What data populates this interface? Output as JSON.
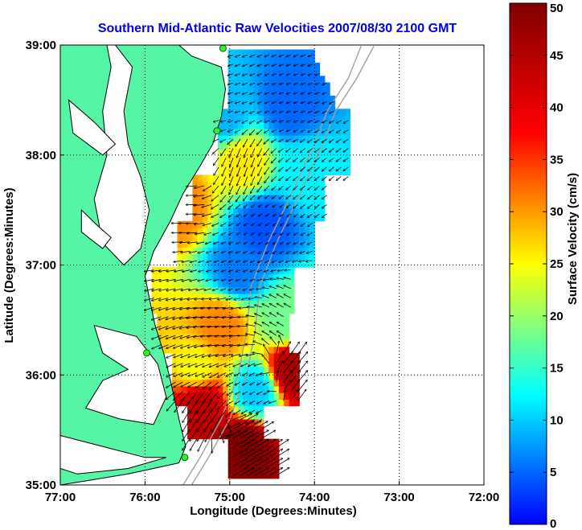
{
  "chart_data": {
    "type": "heatmap",
    "title": "Southern Mid-Atlantic Raw Velocities 2007/08/30 2100 GMT",
    "xlabel": "Longitude (Degrees:Minutes)",
    "ylabel": "Latitude (Degrees:Minutes)",
    "colorbar_label": "Surface Velocity (cm/s)",
    "xlim": [
      -77,
      -72
    ],
    "ylim": [
      35,
      39
    ],
    "clim": [
      0,
      50
    ],
    "colormap": "jet",
    "grid": "dotted",
    "x_ticks": [
      {
        "value": -77,
        "label": "77:00"
      },
      {
        "value": -76,
        "label": "76:00"
      },
      {
        "value": -75,
        "label": "75:00"
      },
      {
        "value": -74,
        "label": "74:00"
      },
      {
        "value": -73,
        "label": "73:00"
      },
      {
        "value": -72,
        "label": "72:00"
      }
    ],
    "y_ticks": [
      {
        "value": 35,
        "label": "35:00"
      },
      {
        "value": 36,
        "label": "36:00"
      },
      {
        "value": 37,
        "label": "37:00"
      },
      {
        "value": 38,
        "label": "38:00"
      },
      {
        "value": 39,
        "label": "39:00"
      }
    ],
    "colorbar_ticks": [
      0,
      5,
      10,
      15,
      20,
      25,
      30,
      35,
      40,
      45,
      50
    ],
    "land_color": "#55f5a5",
    "coast_color": "#000000",
    "bathymetry_color": "#a0a0a0",
    "arrow_color": "#000000",
    "stations": [
      {
        "lon": -75.08,
        "lat": 38.97
      },
      {
        "lon": -75.15,
        "lat": 38.22
      },
      {
        "lon": -75.98,
        "lat": 36.2
      },
      {
        "lon": -75.53,
        "lat": 35.25
      }
    ],
    "velocity_zones": [
      {
        "lon": -75.05,
        "lat": 38.35,
        "speed": 9,
        "dir": 195
      },
      {
        "lon": -74.3,
        "lat": 38.45,
        "speed": 5,
        "dir": 200
      },
      {
        "lon": -74.85,
        "lat": 37.95,
        "speed": 26,
        "dir": 250
      },
      {
        "lon": -74.1,
        "lat": 37.85,
        "speed": 12,
        "dir": 220
      },
      {
        "lon": -75.6,
        "lat": 37.55,
        "speed": 31,
        "dir": 180
      },
      {
        "lon": -74.6,
        "lat": 37.35,
        "speed": 4,
        "dir": 215
      },
      {
        "lon": -74.9,
        "lat": 36.95,
        "speed": 6,
        "dir": 200
      },
      {
        "lon": -75.1,
        "lat": 36.45,
        "speed": 31,
        "dir": 185
      },
      {
        "lon": -74.35,
        "lat": 36.5,
        "speed": 18,
        "dir": 150
      },
      {
        "lon": -75.4,
        "lat": 36.05,
        "speed": 25,
        "dir": 200
      },
      {
        "lon": -74.25,
        "lat": 36.05,
        "speed": 46,
        "dir": 50
      },
      {
        "lon": -74.7,
        "lat": 35.85,
        "speed": 10,
        "dir": 210
      },
      {
        "lon": -75.35,
        "lat": 35.75,
        "speed": 44,
        "dir": 240
      },
      {
        "lon": -74.85,
        "lat": 35.35,
        "speed": 50,
        "dir": 30
      }
    ]
  }
}
